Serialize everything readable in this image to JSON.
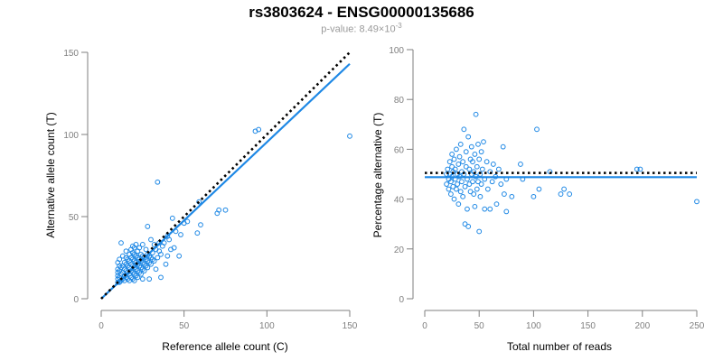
{
  "header": {
    "title": "rs3803624 - ENSG00000135686",
    "pvalue_prefix": "p-value: 8.49×10",
    "pvalue_exp": "-3"
  },
  "colors": {
    "accent": "#1e88e5",
    "axis": "#7f7f7f",
    "reference": "#000000"
  },
  "chart_data": [
    {
      "type": "scatter",
      "title": "",
      "xlabel": "Reference allele count (C)",
      "ylabel": "Alternative allele count (T)",
      "xlim": [
        0,
        150
      ],
      "ylim": [
        0,
        150
      ],
      "xticks": [
        0,
        50,
        100,
        150
      ],
      "yticks": [
        0,
        50,
        100,
        150
      ],
      "grid": false,
      "fit_line": {
        "x": [
          0,
          150
        ],
        "y": [
          0,
          143
        ]
      },
      "reference_line": {
        "x": [
          0,
          150
        ],
        "y": [
          0,
          150
        ]
      },
      "points": [
        [
          10,
          10
        ],
        [
          10,
          12
        ],
        [
          10,
          14
        ],
        [
          10,
          16
        ],
        [
          10,
          18
        ],
        [
          10,
          22
        ],
        [
          11,
          10
        ],
        [
          11,
          13
        ],
        [
          11,
          17
        ],
        [
          11,
          20
        ],
        [
          11,
          24
        ],
        [
          12,
          11
        ],
        [
          12,
          15
        ],
        [
          12,
          19
        ],
        [
          12,
          34
        ],
        [
          13,
          12
        ],
        [
          13,
          16
        ],
        [
          13,
          20
        ],
        [
          13,
          26
        ],
        [
          14,
          11
        ],
        [
          14,
          14
        ],
        [
          14,
          18
        ],
        [
          14,
          22
        ],
        [
          15,
          13
        ],
        [
          15,
          17
        ],
        [
          15,
          21
        ],
        [
          15,
          25
        ],
        [
          15,
          29
        ],
        [
          16,
          12
        ],
        [
          16,
          16
        ],
        [
          16,
          20
        ],
        [
          16,
          24
        ],
        [
          17,
          11
        ],
        [
          17,
          15
        ],
        [
          17,
          19
        ],
        [
          17,
          23
        ],
        [
          17,
          27
        ],
        [
          18,
          13
        ],
        [
          18,
          17
        ],
        [
          18,
          21
        ],
        [
          18,
          25
        ],
        [
          18,
          30
        ],
        [
          19,
          12
        ],
        [
          19,
          16
        ],
        [
          19,
          20
        ],
        [
          19,
          24
        ],
        [
          19,
          28
        ],
        [
          19,
          32
        ],
        [
          20,
          11
        ],
        [
          20,
          15
        ],
        [
          20,
          19
        ],
        [
          20,
          23
        ],
        [
          20,
          27
        ],
        [
          20,
          31
        ],
        [
          21,
          14
        ],
        [
          21,
          18
        ],
        [
          21,
          22
        ],
        [
          21,
          26
        ],
        [
          21,
          33
        ],
        [
          22,
          13
        ],
        [
          22,
          17
        ],
        [
          22,
          21
        ],
        [
          22,
          25
        ],
        [
          22,
          29
        ],
        [
          23,
          16
        ],
        [
          23,
          20
        ],
        [
          23,
          24
        ],
        [
          23,
          31
        ],
        [
          24,
          15
        ],
        [
          24,
          19
        ],
        [
          24,
          23
        ],
        [
          24,
          27
        ],
        [
          25,
          12
        ],
        [
          25,
          18
        ],
        [
          25,
          22
        ],
        [
          25,
          26
        ],
        [
          25,
          33
        ],
        [
          26,
          17
        ],
        [
          26,
          21
        ],
        [
          26,
          25
        ],
        [
          27,
          20
        ],
        [
          27,
          24
        ],
        [
          27,
          30
        ],
        [
          28,
          19
        ],
        [
          28,
          23
        ],
        [
          28,
          27
        ],
        [
          28,
          44
        ],
        [
          29,
          12
        ],
        [
          29,
          22
        ],
        [
          29,
          26
        ],
        [
          30,
          21
        ],
        [
          30,
          25
        ],
        [
          30,
          36
        ],
        [
          31,
          24
        ],
        [
          31,
          28
        ],
        [
          32,
          23
        ],
        [
          32,
          33
        ],
        [
          33,
          18
        ],
        [
          33,
          30
        ],
        [
          34,
          25
        ],
        [
          34,
          71
        ],
        [
          35,
          29
        ],
        [
          35,
          34
        ],
        [
          36,
          13
        ],
        [
          36,
          27
        ],
        [
          37,
          32
        ],
        [
          38,
          34
        ],
        [
          39,
          21
        ],
        [
          40,
          26
        ],
        [
          40,
          38
        ],
        [
          41,
          36
        ],
        [
          42,
          30
        ],
        [
          43,
          49
        ],
        [
          44,
          31
        ],
        [
          45,
          41
        ],
        [
          47,
          26
        ],
        [
          48,
          39
        ],
        [
          50,
          46
        ],
        [
          52,
          47
        ],
        [
          58,
          40
        ],
        [
          59,
          59
        ],
        [
          60,
          45
        ],
        [
          70,
          52
        ],
        [
          71,
          54
        ],
        [
          75,
          54
        ],
        [
          93,
          102
        ],
        [
          95,
          103
        ],
        [
          150,
          99
        ]
      ]
    },
    {
      "type": "scatter",
      "title": "",
      "xlabel": "Total number of reads",
      "ylabel": "Percentage alternative (T)",
      "xlim": [
        0,
        250
      ],
      "ylim": [
        0,
        100
      ],
      "xticks": [
        0,
        50,
        100,
        150,
        200,
        250
      ],
      "yticks": [
        0,
        20,
        40,
        60,
        80,
        100
      ],
      "grid": false,
      "fit_line": {
        "x": [
          0,
          250
        ],
        "y": [
          48.8,
          48.8
        ]
      },
      "reference_line": {
        "x": [
          0,
          250
        ],
        "y": [
          50.5,
          50.5
        ]
      },
      "points": [
        [
          20,
          50
        ],
        [
          20,
          46
        ],
        [
          21,
          52
        ],
        [
          22,
          48
        ],
        [
          22,
          44
        ],
        [
          23,
          55
        ],
        [
          23,
          50
        ],
        [
          24,
          47
        ],
        [
          24,
          42
        ],
        [
          25,
          58
        ],
        [
          25,
          53
        ],
        [
          25,
          49
        ],
        [
          26,
          45
        ],
        [
          26,
          51
        ],
        [
          27,
          56
        ],
        [
          27,
          40
        ],
        [
          28,
          48
        ],
        [
          28,
          52
        ],
        [
          29,
          44
        ],
        [
          29,
          60
        ],
        [
          30,
          50
        ],
        [
          30,
          46
        ],
        [
          31,
          54
        ],
        [
          31,
          38
        ],
        [
          32,
          49
        ],
        [
          32,
          57
        ],
        [
          33,
          43
        ],
        [
          33,
          62
        ],
        [
          34,
          51
        ],
        [
          34,
          47
        ],
        [
          35,
          55
        ],
        [
          35,
          41
        ],
        [
          36,
          68
        ],
        [
          36,
          50
        ],
        [
          37,
          30
        ],
        [
          37,
          45
        ],
        [
          38,
          53
        ],
        [
          38,
          59
        ],
        [
          39,
          48
        ],
        [
          39,
          36
        ],
        [
          40,
          29
        ],
        [
          40,
          65
        ],
        [
          41,
          52
        ],
        [
          41,
          46
        ],
        [
          42,
          56
        ],
        [
          42,
          43
        ],
        [
          43,
          50
        ],
        [
          43,
          61
        ],
        [
          44,
          47
        ],
        [
          44,
          55
        ],
        [
          45,
          42
        ],
        [
          45,
          51
        ],
        [
          46,
          58
        ],
        [
          46,
          37
        ],
        [
          47,
          74
        ],
        [
          47,
          49
        ],
        [
          48,
          53
        ],
        [
          48,
          44
        ],
        [
          49,
          62
        ],
        [
          49,
          47
        ],
        [
          50,
          27
        ],
        [
          50,
          56
        ],
        [
          51,
          50
        ],
        [
          51,
          41
        ],
        [
          52,
          59
        ],
        [
          52,
          46
        ],
        [
          53,
          52
        ],
        [
          54,
          63
        ],
        [
          55,
          48
        ],
        [
          55,
          36
        ],
        [
          57,
          55
        ],
        [
          58,
          44
        ],
        [
          60,
          51
        ],
        [
          60,
          36
        ],
        [
          62,
          47
        ],
        [
          63,
          54
        ],
        [
          65,
          49
        ],
        [
          66,
          38
        ],
        [
          68,
          52
        ],
        [
          70,
          46
        ],
        [
          72,
          61
        ],
        [
          73,
          42
        ],
        [
          75,
          35
        ],
        [
          75,
          48
        ],
        [
          80,
          41
        ],
        [
          88,
          54
        ],
        [
          90,
          48
        ],
        [
          100,
          41
        ],
        [
          103,
          68
        ],
        [
          105,
          44
        ],
        [
          115,
          51
        ],
        [
          125,
          42
        ],
        [
          128,
          44
        ],
        [
          133,
          42
        ],
        [
          195,
          52
        ],
        [
          198,
          52
        ],
        [
          250,
          39
        ]
      ]
    }
  ]
}
